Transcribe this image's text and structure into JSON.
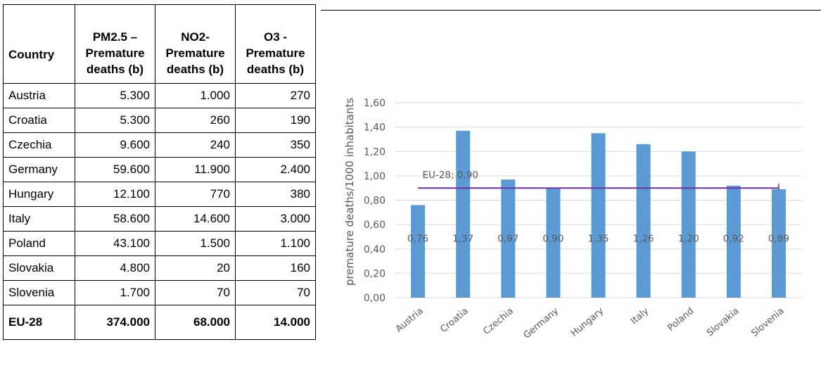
{
  "table": {
    "headers": [
      [
        "Country"
      ],
      [
        "PM2.5 –",
        "Premature",
        "deaths (b)"
      ],
      [
        "NO2-",
        "Premature",
        "deaths (b)"
      ],
      [
        "O3 -",
        "Premature",
        "deaths (b)"
      ]
    ],
    "rows": [
      [
        "Austria",
        "5.300",
        "1.000",
        "270"
      ],
      [
        "Croatia",
        "5.300",
        "260",
        "190"
      ],
      [
        "Czechia",
        "9.600",
        "240",
        "350"
      ],
      [
        "Germany",
        "59.600",
        "11.900",
        "2.400"
      ],
      [
        "Hungary",
        "12.100",
        "770",
        "380"
      ],
      [
        "Italy",
        "58.600",
        "14.600",
        "3.000"
      ],
      [
        "Poland",
        "43.100",
        "1.500",
        "1.100"
      ],
      [
        "Slovakia",
        "4.800",
        "20",
        "160"
      ],
      [
        "Slovenia",
        "1.700",
        "70",
        "70"
      ]
    ],
    "total": [
      "EU-28",
      "374.000",
      "68.000",
      "14.000"
    ]
  },
  "chart_data": {
    "type": "bar",
    "categories": [
      "Austria",
      "Croatia",
      "Czechia",
      "Germany",
      "Hungary",
      "Italy",
      "Poland",
      "Slovakia",
      "Slovenia"
    ],
    "values": [
      0.76,
      1.37,
      0.97,
      0.9,
      1.35,
      1.26,
      1.2,
      0.92,
      0.89
    ],
    "data_labels": [
      "0,76",
      "1,37",
      "0,97",
      "0,90",
      "1,35",
      "1,26",
      "1,20",
      "0,92",
      "0,89"
    ],
    "ylabel": "premature deaths/1000 inhabitants",
    "ylim": [
      0,
      1.6
    ],
    "yticks": [
      0,
      0.2,
      0.4,
      0.6,
      0.8,
      1.0,
      1.2,
      1.4,
      1.6
    ],
    "ytick_labels": [
      "0,00",
      "0,20",
      "0,40",
      "0,60",
      "0,80",
      "1,00",
      "1,20",
      "1,40",
      "1,60"
    ],
    "grid": true,
    "reference_line": {
      "value": 0.9,
      "label": "EU-28; 0,90"
    },
    "colors": {
      "bar": "#5b9bd5",
      "reference_line": "#7030a0",
      "grid": "#d9d9d9",
      "text": "#595959"
    }
  }
}
